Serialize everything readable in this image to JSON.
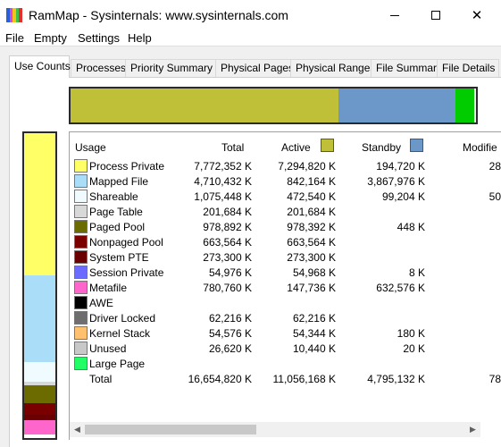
{
  "window": {
    "title": "RamMap - Sysinternals: www.sysinternals.com",
    "icon_colors": [
      "#2b5fd9",
      "#d94ad0",
      "#f4c21b",
      "#3ac24a",
      "#e23030"
    ]
  },
  "menu": [
    "File",
    "Empty",
    "Settings",
    "Help"
  ],
  "tabs": [
    "Use Counts",
    "Processes",
    "Priority Summary",
    "Physical Pages",
    "Physical Ranges",
    "File Summary",
    "File Details"
  ],
  "active_tab": "Use Counts",
  "top_bar_segments": [
    {
      "name": "active",
      "color": "#bfbf38",
      "fraction": 0.66
    },
    {
      "name": "standby",
      "color": "#6b98c8",
      "fraction": 0.29
    },
    {
      "name": "modified",
      "color": "#00cc00",
      "fraction": 0.045
    }
  ],
  "left_bar_segments": [
    {
      "color": "#ffff66",
      "fraction": 0.467
    },
    {
      "color": "#aaddf7",
      "fraction": 0.283
    },
    {
      "color": "#f0fbff",
      "fraction": 0.065
    },
    {
      "color": "#d8d8d8",
      "fraction": 0.012
    },
    {
      "color": "#6b6b00",
      "fraction": 0.058
    },
    {
      "color": "#7a0000",
      "fraction": 0.04
    },
    {
      "color": "#6a0000",
      "fraction": 0.016
    },
    {
      "color": "#ff66cc",
      "fraction": 0.047
    },
    {
      "color": "#ffffff",
      "fraction": 0.012
    }
  ],
  "table": {
    "headers": {
      "usage": "Usage",
      "total": "Total",
      "active": "Active",
      "standby": "Standby",
      "modified": "Modifie"
    },
    "header_colors": {
      "active": "#bfbf38",
      "standby": "#6b98c8"
    },
    "rows": [
      {
        "label": "Process Private",
        "color": "#ffff66",
        "total": "7,772,352 K",
        "active": "7,294,820 K",
        "standby": "194,720 K",
        "modified": "28"
      },
      {
        "label": "Mapped File",
        "color": "#aaddf7",
        "total": "4,710,432 K",
        "active": "842,164 K",
        "standby": "3,867,976 K",
        "modified": ""
      },
      {
        "label": "Shareable",
        "color": "#f0fbff",
        "total": "1,075,448 K",
        "active": "472,540 K",
        "standby": "99,204 K",
        "modified": "50"
      },
      {
        "label": "Page Table",
        "color": "#d8d8d8",
        "total": "201,684 K",
        "active": "201,684 K",
        "standby": "",
        "modified": ""
      },
      {
        "label": "Paged Pool",
        "color": "#6b6b00",
        "total": "978,892 K",
        "active": "978,392 K",
        "standby": "448 K",
        "modified": ""
      },
      {
        "label": "Nonpaged Pool",
        "color": "#7a0000",
        "total": "663,564 K",
        "active": "663,564 K",
        "standby": "",
        "modified": ""
      },
      {
        "label": "System PTE",
        "color": "#6a0000",
        "total": "273,300 K",
        "active": "273,300 K",
        "standby": "",
        "modified": ""
      },
      {
        "label": "Session Private",
        "color": "#6b6bff",
        "total": "54,976 K",
        "active": "54,968 K",
        "standby": "8 K",
        "modified": ""
      },
      {
        "label": "Metafile",
        "color": "#ff66cc",
        "total": "780,760 K",
        "active": "147,736 K",
        "standby": "632,576 K",
        "modified": ""
      },
      {
        "label": "AWE",
        "color": "#000000",
        "total": "",
        "active": "",
        "standby": "",
        "modified": ""
      },
      {
        "label": "Driver Locked",
        "color": "#6e6e6e",
        "total": "62,216 K",
        "active": "62,216 K",
        "standby": "",
        "modified": ""
      },
      {
        "label": "Kernel Stack",
        "color": "#ffc070",
        "total": "54,576 K",
        "active": "54,344 K",
        "standby": "180 K",
        "modified": ""
      },
      {
        "label": "Unused",
        "color": "#c8c8c8",
        "total": "26,620 K",
        "active": "10,440 K",
        "standby": "20 K",
        "modified": ""
      },
      {
        "label": "Large Page",
        "color": "#22ff66",
        "total": "",
        "active": "",
        "standby": "",
        "modified": ""
      },
      {
        "label": "Total",
        "color": "",
        "total": "16,654,820 K",
        "active": "11,056,168 K",
        "standby": "4,795,132 K",
        "modified": "78"
      }
    ]
  }
}
